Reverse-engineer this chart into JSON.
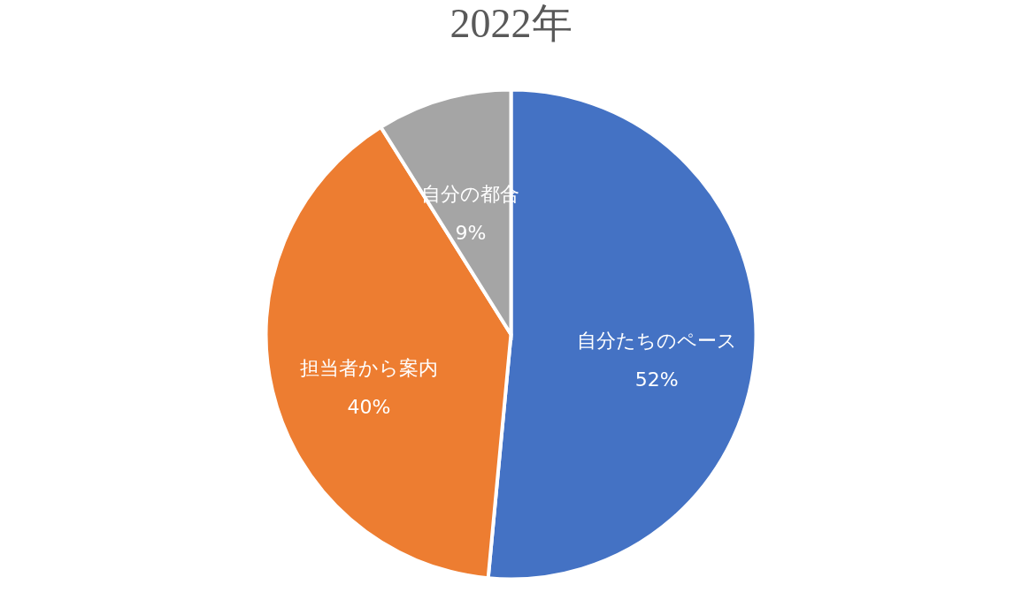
{
  "chart_data": {
    "type": "pie",
    "title": "2022年",
    "categories": [
      "自分たちのペース",
      "担当者から案内",
      "自分の都合"
    ],
    "values": [
      52,
      40,
      9
    ],
    "value_labels": [
      "52%",
      "40%",
      "9%"
    ],
    "colors": [
      "#4472c4",
      "#ed7d31",
      "#a5a5a5"
    ]
  }
}
